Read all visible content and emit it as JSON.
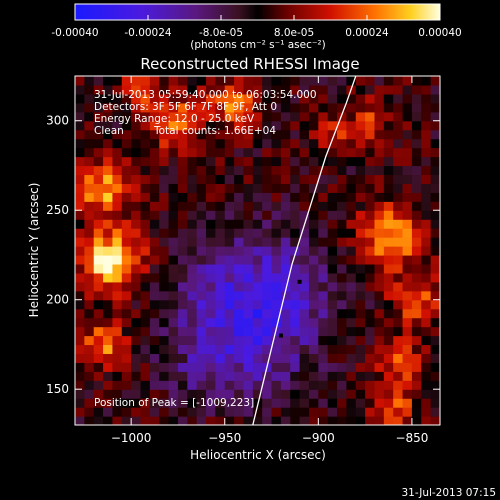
{
  "colors": {
    "background": "#000000",
    "text": "#ffffff",
    "limb": "#ffffff"
  },
  "colorbar": {
    "tick_values": [
      -0.0004,
      -0.00024,
      -8e-05,
      8e-05,
      0.00024,
      0.0004
    ],
    "tick_labels": [
      "-0.00040",
      "-0.00024",
      "-8.0e-05",
      "8.0e-05",
      "0.00024",
      "0.00040"
    ],
    "range": [
      -0.0004,
      0.0004
    ],
    "unit_label": "(photons cm⁻² s⁻¹ asec⁻²)"
  },
  "chart_data": {
    "type": "heatmap",
    "title": "Reconstructed RHESSI Image",
    "xlabel": "Heliocentric X (arcsec)",
    "ylabel": "Heliocentric Y (arcsec)",
    "xlim": [
      -1030,
      -835
    ],
    "ylim": [
      130,
      325
    ],
    "x_ticks": [
      -1000,
      -950,
      -900,
      -850
    ],
    "x_tick_labels": [
      "−1000",
      "−950",
      "−900",
      "−850"
    ],
    "y_ticks": [
      150,
      200,
      250,
      300
    ],
    "y_tick_labels": [
      "150",
      "200",
      "250",
      "300"
    ],
    "grid": false,
    "annotations": {
      "time_range": "31-Jul-2013 05:59:40.000 to 06:03:54.000",
      "detectors": "Detectors: 3F 5F 6F 7F 8F 9F, Att 0",
      "energy": "Energy Range: 12.0 - 25.0 keV",
      "method": "Clean",
      "counts": "Total counts: 1.66E+04",
      "peak": "Position of Peak = [-1009,223]"
    },
    "limb_points": [
      [
        -935,
        130
      ],
      [
        -928,
        160
      ],
      [
        -921,
        190
      ],
      [
        -914,
        220
      ],
      [
        -905,
        250
      ],
      [
        -896,
        280
      ],
      [
        -885,
        310
      ],
      [
        -880,
        325
      ]
    ],
    "peak_markers": [
      [
        -910,
        210
      ],
      [
        -920,
        180
      ]
    ],
    "field": {
      "grid_resolution_arcsec": 5,
      "bright_blobs": [
        {
          "x": -1010,
          "y": 222,
          "sigma": 12,
          "amp": 0.0004
        },
        {
          "x": -1015,
          "y": 262,
          "sigma": 10,
          "amp": 0.0003
        },
        {
          "x": -1015,
          "y": 175,
          "sigma": 9,
          "amp": 0.00024
        },
        {
          "x": -978,
          "y": 300,
          "sigma": 10,
          "amp": 0.00026
        },
        {
          "x": -945,
          "y": 310,
          "sigma": 10,
          "amp": 0.00022
        },
        {
          "x": -995,
          "y": 318,
          "sigma": 7,
          "amp": 0.00018
        },
        {
          "x": -862,
          "y": 235,
          "sigma": 12,
          "amp": 0.0003
        },
        {
          "x": -848,
          "y": 200,
          "sigma": 10,
          "amp": 0.00022
        },
        {
          "x": -856,
          "y": 165,
          "sigma": 9,
          "amp": 0.00022
        },
        {
          "x": -860,
          "y": 140,
          "sigma": 8,
          "amp": 0.00022
        },
        {
          "x": -893,
          "y": 295,
          "sigma": 7,
          "amp": 0.00016
        },
        {
          "x": -872,
          "y": 300,
          "sigma": 8,
          "amp": 0.00018
        }
      ],
      "dark_blobs": [
        {
          "x": -955,
          "y": 200,
          "sigma": 22,
          "amp": -0.00016
        },
        {
          "x": -920,
          "y": 205,
          "sigma": 22,
          "amp": -0.0002
        },
        {
          "x": -932,
          "y": 170,
          "sigma": 18,
          "amp": -0.00014
        },
        {
          "x": -963,
          "y": 160,
          "sigma": 14,
          "amp": -0.0001
        }
      ],
      "noise_amplitude": 8e-05
    }
  },
  "footer": {
    "timestamp": "31-Jul-2013 07:15"
  }
}
